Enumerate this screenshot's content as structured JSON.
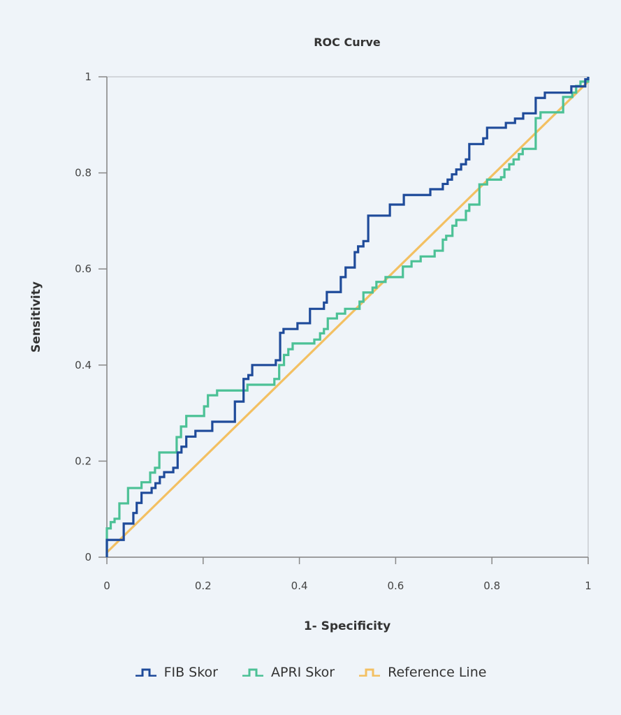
{
  "chart_data": {
    "type": "line",
    "title": "ROC Curve",
    "xlabel": "1- Specificity",
    "ylabel": "Sensitivity",
    "xlim": [
      0,
      1
    ],
    "ylim": [
      0,
      1
    ],
    "xticks": [
      "0",
      "0.2",
      "0.4",
      "0.6",
      "0.8",
      "1"
    ],
    "yticks": [
      "0",
      "0.2",
      "0.4",
      "0.6",
      "0.8",
      "1"
    ],
    "grid": false,
    "legend_position": "bottom",
    "series": [
      {
        "name": "FIB Skor",
        "color": "#1f4b9a",
        "style": "step",
        "points": [
          [
            0,
            0.036
          ],
          [
            0.035,
            0.07
          ],
          [
            0.055,
            0.092
          ],
          [
            0.062,
            0.113
          ],
          [
            0.072,
            0.134
          ],
          [
            0.093,
            0.144
          ],
          [
            0.101,
            0.154
          ],
          [
            0.11,
            0.167
          ],
          [
            0.119,
            0.177
          ],
          [
            0.138,
            0.186
          ],
          [
            0.147,
            0.218
          ],
          [
            0.155,
            0.23
          ],
          [
            0.165,
            0.251
          ],
          [
            0.184,
            0.263
          ],
          [
            0.219,
            0.282
          ],
          [
            0.266,
            0.324
          ],
          [
            0.284,
            0.371
          ],
          [
            0.294,
            0.379
          ],
          [
            0.302,
            0.4
          ],
          [
            0.351,
            0.41
          ],
          [
            0.36,
            0.467
          ],
          [
            0.367,
            0.475
          ],
          [
            0.396,
            0.487
          ],
          [
            0.422,
            0.517
          ],
          [
            0.451,
            0.53
          ],
          [
            0.457,
            0.552
          ],
          [
            0.486,
            0.583
          ],
          [
            0.496,
            0.603
          ],
          [
            0.515,
            0.635
          ],
          [
            0.522,
            0.647
          ],
          [
            0.533,
            0.658
          ],
          [
            0.543,
            0.711
          ],
          [
            0.588,
            0.734
          ],
          [
            0.617,
            0.754
          ],
          [
            0.672,
            0.766
          ],
          [
            0.698,
            0.777
          ],
          [
            0.708,
            0.786
          ],
          [
            0.717,
            0.797
          ],
          [
            0.726,
            0.807
          ],
          [
            0.736,
            0.818
          ],
          [
            0.746,
            0.828
          ],
          [
            0.753,
            0.86
          ],
          [
            0.782,
            0.872
          ],
          [
            0.79,
            0.894
          ],
          [
            0.829,
            0.904
          ],
          [
            0.848,
            0.913
          ],
          [
            0.865,
            0.924
          ],
          [
            0.891,
            0.956
          ],
          [
            0.91,
            0.967
          ],
          [
            0.965,
            0.98
          ],
          [
            0.994,
            0.995
          ],
          [
            1,
            1
          ]
        ]
      },
      {
        "name": "APRI Skor",
        "color": "#4cc196",
        "style": "step",
        "points": [
          [
            0,
            0.06
          ],
          [
            0.008,
            0.073
          ],
          [
            0.016,
            0.08
          ],
          [
            0.026,
            0.112
          ],
          [
            0.044,
            0.144
          ],
          [
            0.072,
            0.156
          ],
          [
            0.09,
            0.176
          ],
          [
            0.1,
            0.186
          ],
          [
            0.109,
            0.218
          ],
          [
            0.145,
            0.25
          ],
          [
            0.154,
            0.272
          ],
          [
            0.165,
            0.294
          ],
          [
            0.202,
            0.314
          ],
          [
            0.21,
            0.337
          ],
          [
            0.229,
            0.347
          ],
          [
            0.292,
            0.359
          ],
          [
            0.348,
            0.371
          ],
          [
            0.358,
            0.4
          ],
          [
            0.368,
            0.421
          ],
          [
            0.377,
            0.433
          ],
          [
            0.386,
            0.445
          ],
          [
            0.431,
            0.453
          ],
          [
            0.443,
            0.466
          ],
          [
            0.451,
            0.475
          ],
          [
            0.459,
            0.497
          ],
          [
            0.478,
            0.507
          ],
          [
            0.495,
            0.517
          ],
          [
            0.525,
            0.532
          ],
          [
            0.533,
            0.551
          ],
          [
            0.552,
            0.561
          ],
          [
            0.56,
            0.573
          ],
          [
            0.579,
            0.583
          ],
          [
            0.615,
            0.605
          ],
          [
            0.633,
            0.616
          ],
          [
            0.652,
            0.626
          ],
          [
            0.681,
            0.638
          ],
          [
            0.698,
            0.661
          ],
          [
            0.705,
            0.669
          ],
          [
            0.718,
            0.69
          ],
          [
            0.726,
            0.702
          ],
          [
            0.746,
            0.721
          ],
          [
            0.753,
            0.734
          ],
          [
            0.774,
            0.776
          ],
          [
            0.79,
            0.786
          ],
          [
            0.819,
            0.791
          ],
          [
            0.826,
            0.807
          ],
          [
            0.836,
            0.818
          ],
          [
            0.845,
            0.828
          ],
          [
            0.856,
            0.839
          ],
          [
            0.864,
            0.85
          ],
          [
            0.891,
            0.914
          ],
          [
            0.901,
            0.926
          ],
          [
            0.948,
            0.958
          ],
          [
            0.967,
            0.967
          ],
          [
            0.975,
            0.981
          ],
          [
            0.984,
            0.99
          ],
          [
            1,
            1
          ]
        ]
      },
      {
        "name": "Reference Line",
        "color": "#f3c062",
        "style": "line",
        "points": [
          [
            0,
            0.01
          ],
          [
            1,
            0.99
          ]
        ]
      }
    ]
  }
}
